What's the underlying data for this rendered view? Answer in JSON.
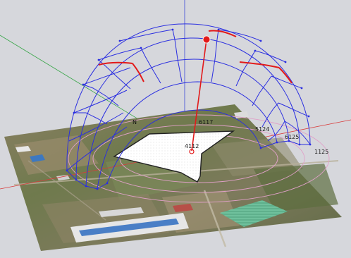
{
  "scene": {
    "background_color": "#d6d7dc",
    "axes_colors": {
      "red": "#d83b3b",
      "green": "#3aa64a",
      "blue": "#3a48d6"
    },
    "dome_color": "#2b2fe0",
    "sun_color": "#e21a1a",
    "ground_circle_color": "#e0a0c8",
    "plot_color": "#ffffff"
  },
  "labels": {
    "north": "N",
    "center_marker": "4112",
    "dome_tick_1": "6117",
    "dome_tick_2": "5124",
    "dome_tick_3": "6125",
    "east_edge": "1125"
  }
}
